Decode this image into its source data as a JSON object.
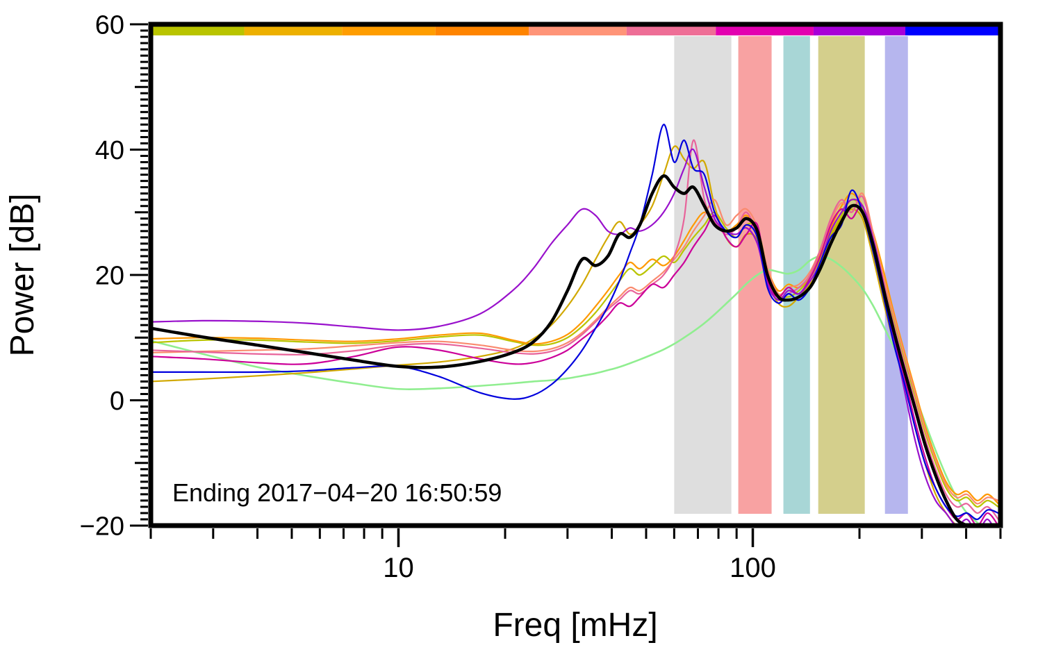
{
  "chart_data": {
    "type": "line",
    "title": "",
    "xlabel": "Freq [mHz]",
    "ylabel": "Power [dB]",
    "annotation": "Ending 2017−04−20 16:50:59",
    "x_scale": "log",
    "xlim": [
      2,
      500
    ],
    "ylim": [
      -20,
      60
    ],
    "grid": false,
    "legend": "none",
    "x_major_ticks": [
      10,
      100
    ],
    "x_minor_ticks": [
      2,
      3,
      4,
      5,
      6,
      7,
      8,
      9,
      20,
      30,
      40,
      50,
      60,
      70,
      80,
      90,
      200,
      300,
      400,
      500
    ],
    "y_major_ticks": [
      -20,
      0,
      20,
      40,
      60
    ],
    "y_minor_step": 1,
    "bands": [
      {
        "name": "band-gray",
        "color": "#dedede",
        "x0": 60,
        "x1": 87
      },
      {
        "name": "band-red",
        "color": "#f8a2a2",
        "x0": 91,
        "x1": 113
      },
      {
        "name": "band-teal",
        "color": "#a8d6d6",
        "x0": 122,
        "x1": 145
      },
      {
        "name": "band-khaki",
        "color": "#d4cf8c",
        "x0": 153,
        "x1": 207
      },
      {
        "name": "band-lavender",
        "color": "#b6b6ee",
        "x0": 236,
        "x1": 274
      }
    ],
    "colorbar_segments": [
      {
        "color": "#b9c400",
        "f0": 0.0,
        "f1": 0.11
      },
      {
        "color": "#edb000",
        "f0": 0.11,
        "f1": 0.225
      },
      {
        "color": "#ff9d00",
        "f0": 0.225,
        "f1": 0.335
      },
      {
        "color": "#ff8400",
        "f0": 0.335,
        "f1": 0.445
      },
      {
        "color": "#ff9478",
        "f0": 0.445,
        "f1": 0.56
      },
      {
        "color": "#ee6e96",
        "f0": 0.56,
        "f1": 0.665
      },
      {
        "color": "#e300b0",
        "f0": 0.665,
        "f1": 0.78
      },
      {
        "color": "#a800d8",
        "f0": 0.78,
        "f1": 0.888
      },
      {
        "color": "#0000ff",
        "f0": 0.888,
        "f1": 1.0
      }
    ],
    "x": [
      2,
      2.8,
      4,
      5.5,
      7.5,
      10,
      13,
      17,
      21,
      24,
      27,
      30,
      33,
      36,
      39,
      42,
      45,
      48,
      52,
      56,
      60,
      64,
      68,
      73,
      78,
      84,
      90,
      96,
      103,
      110,
      118,
      126,
      135,
      145,
      155,
      166,
      178,
      190,
      204,
      218,
      233,
      250,
      267,
      286,
      306,
      328,
      351,
      376,
      402,
      430,
      460,
      493
    ],
    "series": [
      {
        "name": "spectrum-light-green",
        "color": "#90ee90",
        "width": 2.6,
        "values": [
          9.5,
          7.4,
          5.3,
          3.9,
          2.7,
          1.8,
          1.9,
          2.3,
          2.7,
          3,
          3.2,
          3.5,
          3.9,
          4.3,
          4.8,
          5.3,
          5.9,
          6.5,
          7.3,
          8.1,
          9,
          10,
          11,
          12.3,
          13.7,
          15.4,
          17,
          18.6,
          20,
          20.8,
          20.5,
          20.2,
          20.8,
          22.3,
          23,
          22.5,
          21.3,
          19.8,
          17.8,
          15.2,
          12,
          8.5,
          5,
          1,
          -3.5,
          -8,
          -12,
          -15.5,
          -18,
          -19.5,
          -20.5,
          -21
        ]
      },
      {
        "name": "spectrum-yellow-green",
        "color": "#b9c400",
        "width": 2.2,
        "values": [
          9.2,
          9.6,
          9.6,
          9.3,
          9.1,
          9.5,
          10.1,
          10.4,
          9.4,
          8.8,
          9,
          10,
          11.8,
          14,
          16.5,
          19,
          21,
          20,
          21.5,
          23,
          22,
          24,
          26,
          28,
          30,
          27.5,
          26,
          28,
          27.5,
          21,
          17,
          16.5,
          17.5,
          19.5,
          22.5,
          26.5,
          29.5,
          32,
          30.5,
          26,
          19.5,
          13,
          7,
          1,
          -5,
          -10,
          -14,
          -16,
          -15.5,
          -17,
          -16,
          -17
        ]
      },
      {
        "name": "spectrum-dark-yellow",
        "color": "#d1a800",
        "width": 2.2,
        "values": [
          3,
          3.4,
          3.9,
          4.4,
          5,
          5.6,
          6.1,
          7,
          8.2,
          9.8,
          12,
          15,
          18.5,
          22.5,
          26,
          28.5,
          26.5,
          28,
          31,
          36,
          40.5,
          38.5,
          37,
          38,
          31,
          26,
          24.5,
          26.5,
          25.5,
          19,
          15.5,
          15,
          16.5,
          18.5,
          21.5,
          26,
          29,
          30.5,
          29,
          23,
          16,
          9,
          3,
          -4,
          -10,
          -15,
          -18,
          -20,
          -21,
          -20,
          -22,
          -21
        ]
      },
      {
        "name": "spectrum-orange",
        "color": "#ff9900",
        "width": 2.2,
        "values": [
          9.8,
          10,
          9.9,
          9.6,
          9.4,
          9.8,
          10.4,
          10.7,
          9.6,
          9,
          9.4,
          10.5,
          12.5,
          15,
          17.5,
          20,
          22,
          21,
          22.5,
          21.5,
          23,
          25.5,
          28,
          30,
          28.5,
          27,
          28,
          29.5,
          27,
          21,
          17.5,
          18.5,
          18,
          20,
          23.5,
          27.5,
          31,
          33,
          31,
          27,
          21,
          14,
          8,
          2,
          -4,
          -9,
          -13,
          -15,
          -14.5,
          -16,
          -15,
          -16.5
        ]
      },
      {
        "name": "spectrum-salmon",
        "color": "#fa8a6e",
        "width": 2.2,
        "values": [
          7.6,
          7.8,
          8,
          8.2,
          8.7,
          9.2,
          9.4,
          8.8,
          8,
          7.8,
          8.2,
          9.2,
          10.8,
          12.8,
          14.8,
          16.5,
          18,
          17.5,
          19,
          20.5,
          22.5,
          24.5,
          27,
          29.5,
          32,
          28,
          29.5,
          30.5,
          27.5,
          21,
          17,
          18,
          18.5,
          20.5,
          24,
          28.5,
          31.5,
          30,
          33,
          27,
          20,
          13.5,
          7.5,
          1.5,
          -4.5,
          -9.5,
          -13.5,
          -15.5,
          -15,
          -16.5,
          -15.5,
          -16
        ]
      },
      {
        "name": "spectrum-pink",
        "color": "#e8639a",
        "width": 2.2,
        "values": [
          8,
          7.7,
          7.4,
          7.3,
          7.9,
          8.8,
          9,
          8.3,
          7.6,
          7.4,
          7.8,
          8.8,
          10.5,
          12.5,
          14.5,
          16,
          17.5,
          17,
          18.5,
          20,
          23,
          29,
          41.5,
          32,
          28.5,
          26.5,
          27.5,
          30,
          26,
          19,
          16,
          17,
          18,
          20,
          24,
          29,
          32,
          30,
          32.5,
          26,
          19,
          12,
          6,
          0,
          -6,
          -11,
          -15,
          -17,
          -16.5,
          -18,
          -17,
          -19
        ]
      },
      {
        "name": "spectrum-magenta",
        "color": "#cc0099",
        "width": 2.2,
        "values": [
          7,
          6.6,
          6,
          5.8,
          7,
          8.5,
          8,
          6.6,
          5.8,
          6,
          6.8,
          8,
          9.8,
          11.5,
          13.5,
          15.5,
          15,
          16.5,
          18.5,
          18,
          20,
          22,
          24.5,
          27,
          29.5,
          26,
          24.5,
          26.5,
          28,
          19,
          16.5,
          18,
          17,
          19.5,
          23,
          28,
          30.5,
          29,
          31,
          25,
          18,
          10,
          4,
          -3,
          -9,
          -14,
          -17,
          -19,
          -18,
          -20,
          -18,
          -20
        ]
      },
      {
        "name": "spectrum-purple",
        "color": "#9911cc",
        "width": 2.2,
        "values": [
          12.5,
          12.7,
          12.6,
          12.3,
          11.7,
          11.2,
          11.8,
          13.8,
          17.5,
          21,
          25,
          28,
          30.5,
          29.5,
          27,
          26.5,
          27.5,
          27,
          28,
          30,
          33,
          37,
          40,
          34,
          29,
          27,
          26.5,
          27.5,
          25,
          18.5,
          16,
          17.5,
          17,
          19,
          22,
          27,
          30,
          32,
          31,
          26,
          19,
          10,
          2,
          -6,
          -12,
          -16,
          -18,
          -20,
          -19,
          -21,
          -19,
          -22
        ]
      },
      {
        "name": "spectrum-blue",
        "color": "#0000dd",
        "width": 2.2,
        "values": [
          4.5,
          4.5,
          4.5,
          4.7,
          5.2,
          5.4,
          3.8,
          1.2,
          0.2,
          0.8,
          2.5,
          5,
          8,
          11.5,
          15,
          19,
          23.5,
          28,
          36,
          44,
          38,
          41.5,
          37,
          36,
          30,
          27,
          26,
          28,
          26,
          18,
          15.5,
          17,
          16,
          18,
          22,
          26,
          28,
          33.5,
          30,
          24,
          17,
          9,
          3,
          -4,
          -10,
          -14,
          -17,
          -18.5,
          -18,
          -19,
          -17.5,
          -18
        ]
      },
      {
        "name": "mean-spectrum-black",
        "color": "#000000",
        "width": 4.5,
        "values": [
          11.5,
          10.1,
          8.8,
          7.6,
          6.4,
          5.4,
          5.3,
          6.2,
          7.6,
          9.3,
          12.5,
          17.5,
          22.5,
          21.5,
          23,
          26.5,
          26,
          28,
          33,
          35.8,
          34,
          33,
          34,
          31,
          28,
          27,
          27.5,
          29,
          27,
          20,
          16.5,
          16,
          16.5,
          18,
          21,
          25,
          28.5,
          31,
          30,
          25,
          18,
          11,
          5,
          -1,
          -7,
          -12,
          -16,
          -19,
          -20,
          -21,
          -20,
          -21
        ]
      }
    ]
  }
}
